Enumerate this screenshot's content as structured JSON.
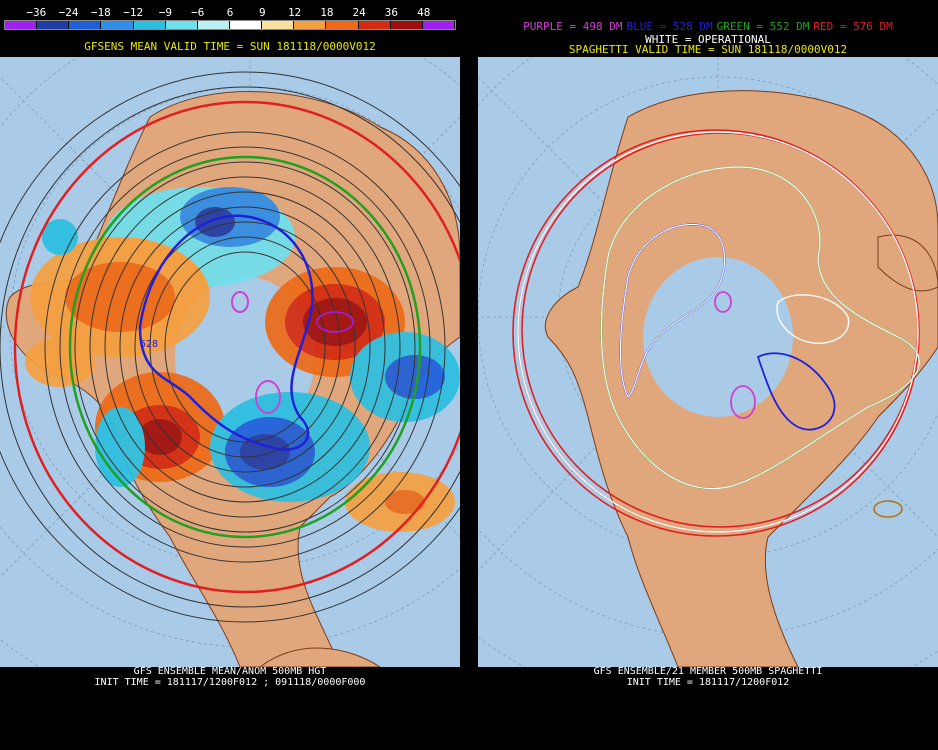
{
  "left": {
    "colorbar_labels": [
      "−36",
      "−24",
      "−18",
      "−12",
      "−9",
      "−6",
      "6",
      "9",
      "12",
      "18",
      "24",
      "36",
      "48"
    ],
    "colorbar_colors": [
      "#a020f0",
      "#1e3ca8",
      "#1e5fd8",
      "#2f8ee8",
      "#2bbfe0",
      "#6fe0ee",
      "#b8f2f4",
      "#ffffff",
      "#fce0a0",
      "#f5a040",
      "#ee6a18",
      "#d42a10",
      "#9e0e0e",
      "#a020f0"
    ],
    "header": "GFSENS MEAN VALID TIME = SUN 181118/0000V012",
    "header_color": "#e8e800",
    "contour_label": "528",
    "footer_line1": "GFS ENSEMBLE MEAN/ANOM 500MB HGT",
    "footer_line2": "INIT TIME = 181117/1200F012 ; 091118/0000F000"
  },
  "right": {
    "legend": [
      {
        "text": "PURPLE = 498 DM",
        "color": "#d040d0"
      },
      {
        "text": "BLUE = 528 DM",
        "color": "#2020d8"
      },
      {
        "text": "GREEN = 552 DM",
        "color": "#20a020"
      },
      {
        "text": "RED = 576 DM",
        "color": "#e02020"
      }
    ],
    "white_label": "WHITE = OPERATIONAL",
    "header": "SPAGHETTI VALID TIME = SUN 181118/0000V012",
    "header_color": "#e8e800",
    "footer_line1": "GFS ENSEMBLE/21 MEMBER 500MB SPAGHETTI",
    "footer_line2": "INIT TIME = 181117/1200F012"
  },
  "colors": {
    "ocean": "#a9cbe8",
    "land": "#e0a77d",
    "coast": "#7a3b1a"
  }
}
